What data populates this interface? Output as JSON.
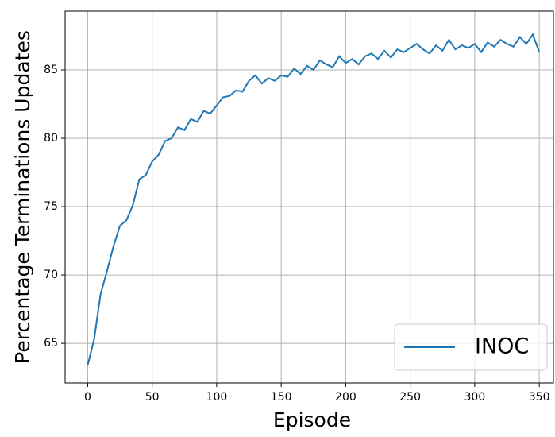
{
  "chart_data": {
    "type": "line",
    "xlabel": "Episode",
    "ylabel": "Percentage Terminations Updates",
    "x": [
      0,
      5,
      10,
      15,
      20,
      25,
      30,
      35,
      40,
      45,
      50,
      55,
      60,
      65,
      70,
      75,
      80,
      85,
      90,
      95,
      100,
      105,
      110,
      115,
      120,
      125,
      130,
      135,
      140,
      145,
      150,
      155,
      160,
      165,
      170,
      175,
      180,
      185,
      190,
      195,
      200,
      205,
      210,
      215,
      220,
      225,
      230,
      235,
      240,
      245,
      250,
      255,
      260,
      265,
      270,
      275,
      280,
      285,
      290,
      295,
      300,
      305,
      310,
      315,
      320,
      325,
      330,
      335,
      340,
      345,
      350
    ],
    "series": [
      {
        "name": "INOC",
        "color": "#1f77b4",
        "values": [
          63.4,
          65.3,
          68.6,
          70.3,
          72.1,
          73.6,
          74.0,
          75.1,
          77.0,
          77.3,
          78.3,
          78.8,
          79.8,
          80.0,
          80.8,
          80.6,
          81.4,
          81.2,
          82.0,
          81.8,
          82.4,
          83.0,
          83.1,
          83.5,
          83.4,
          84.2,
          84.6,
          84.0,
          84.4,
          84.2,
          84.6,
          84.5,
          85.1,
          84.7,
          85.3,
          85.0,
          85.7,
          85.4,
          85.2,
          86.0,
          85.5,
          85.8,
          85.4,
          86.0,
          86.2,
          85.8,
          86.4,
          85.9,
          86.5,
          86.3,
          86.6,
          86.9,
          86.5,
          86.2,
          86.8,
          86.4,
          87.2,
          86.5,
          86.8,
          86.6,
          86.9,
          86.3,
          87.0,
          86.7,
          87.2,
          86.9,
          86.7,
          87.4,
          86.9,
          87.6,
          86.3
        ]
      }
    ],
    "xlim": [
      -17.5,
      361
    ],
    "ylim": [
      62.1,
      89.3
    ],
    "xticks": [
      0,
      50,
      100,
      150,
      200,
      250,
      300,
      350
    ],
    "yticks": [
      65,
      70,
      75,
      80,
      85
    ],
    "grid": true,
    "legend": "lower right"
  }
}
